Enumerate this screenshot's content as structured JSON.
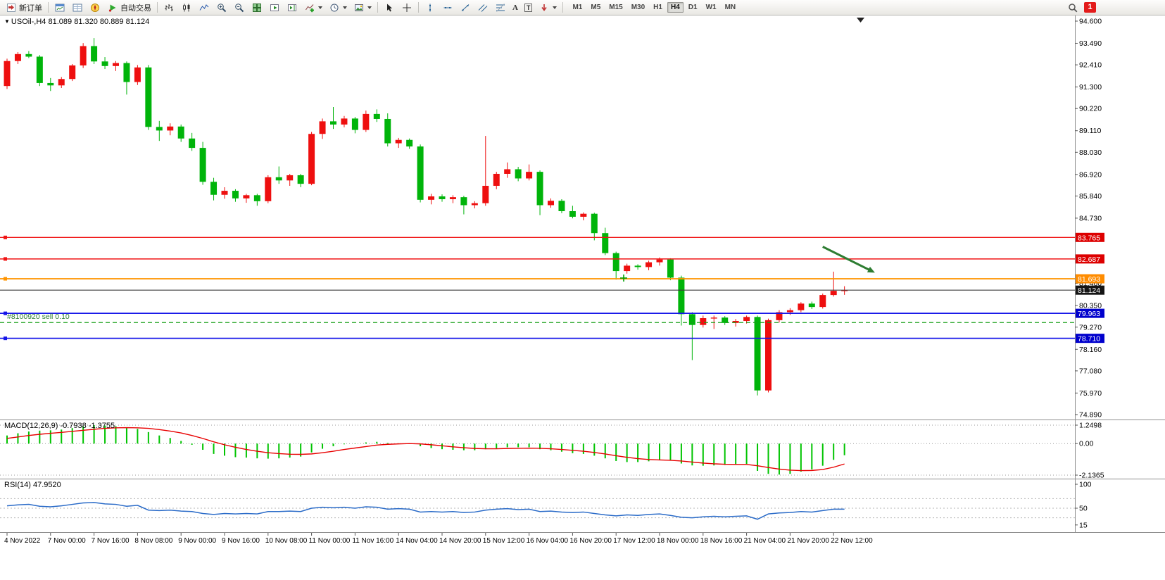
{
  "toolbar": {
    "new_order": "新订单",
    "auto_trading": "自动交易",
    "text_tool": "A",
    "text_label_tool": "T",
    "timeframes": [
      "M1",
      "M5",
      "M15",
      "M30",
      "H1",
      "H4",
      "D1",
      "W1",
      "MN"
    ],
    "active_timeframe": "H4",
    "notification_count": "1"
  },
  "chart": {
    "symbol": "USOil-,H4",
    "ohlc_values": "81.089 81.320 80.889 81.124",
    "macd_label": "MACD(12,26,9) -0.7938 -1.3755",
    "rsi_label": "RSI(14) 47.9520",
    "position_label": "#8100920 sell 0.10"
  },
  "chart_data": [
    {
      "type": "candlestick",
      "title": "USOil-,H4",
      "timeframe": "H4",
      "ohlc_display": {
        "open": "81.089",
        "high": "81.320",
        "low": "80.889",
        "close": "81.124"
      },
      "ylim": [
        74.89,
        94.6
      ],
      "up_color": "#ee0f0f",
      "down_color": "#00b40a",
      "candles_per_label": 4,
      "x_labels": [
        "4 Nov 2022",
        "7 Nov 00:00",
        "7 Nov 16:00",
        "8 Nov 08:00",
        "9 Nov 00:00",
        "9 Nov 16:00",
        "10 Nov 08:00",
        "11 Nov 00:00",
        "11 Nov 16:00",
        "14 Nov 04:00",
        "14 Nov 20:00",
        "15 Nov 12:00",
        "16 Nov 04:00",
        "16 Nov 20:00",
        "17 Nov 12:00",
        "18 Nov 00:00",
        "18 Nov 16:00",
        "21 Nov 04:00",
        "21 Nov 20:00",
        "22 Nov 12:00"
      ],
      "y_axis_labels": [
        "94.600",
        "93.490",
        "92.410",
        "91.300",
        "90.220",
        "89.110",
        "88.030",
        "86.920",
        "85.840",
        "84.730",
        "81.460",
        "80.350",
        "79.270",
        "78.160",
        "77.080",
        "75.970",
        "74.890"
      ],
      "candles": [
        [
          91.35,
          92.72,
          91.2,
          92.6
        ],
        [
          92.6,
          93.05,
          92.45,
          92.95
        ],
        [
          92.95,
          93.1,
          92.75,
          92.82
        ],
        [
          92.82,
          92.9,
          91.35,
          91.5
        ],
        [
          91.5,
          91.75,
          91.1,
          91.38
        ],
        [
          91.38,
          91.8,
          91.25,
          91.7
        ],
        [
          91.7,
          92.45,
          91.6,
          92.38
        ],
        [
          92.38,
          93.5,
          92.25,
          93.35
        ],
        [
          93.35,
          93.75,
          92.45,
          92.58
        ],
        [
          92.58,
          92.8,
          92.2,
          92.35
        ],
        [
          92.35,
          92.6,
          92.1,
          92.5
        ],
        [
          92.5,
          92.58,
          90.92,
          91.55
        ],
        [
          91.55,
          92.4,
          91.4,
          92.28
        ],
        [
          92.28,
          92.4,
          89.15,
          89.3
        ],
        [
          89.3,
          89.6,
          88.6,
          89.12
        ],
        [
          89.12,
          89.48,
          88.88,
          89.32
        ],
        [
          89.32,
          89.42,
          88.55,
          88.72
        ],
        [
          88.72,
          89.0,
          88.1,
          88.25
        ],
        [
          88.25,
          88.55,
          86.4,
          86.55
        ],
        [
          86.55,
          86.75,
          85.62,
          85.9
        ],
        [
          85.9,
          86.28,
          85.7,
          86.1
        ],
        [
          86.1,
          86.18,
          85.55,
          85.72
        ],
        [
          85.72,
          85.95,
          85.5,
          85.88
        ],
        [
          85.88,
          85.95,
          85.35,
          85.58
        ],
        [
          85.58,
          86.88,
          85.48,
          86.78
        ],
        [
          86.78,
          87.32,
          86.45,
          86.62
        ],
        [
          86.62,
          86.95,
          86.35,
          86.88
        ],
        [
          86.88,
          86.95,
          86.28,
          86.45
        ],
        [
          86.45,
          89.05,
          86.38,
          88.95
        ],
        [
          88.95,
          89.72,
          88.7,
          89.58
        ],
        [
          89.58,
          90.3,
          89.2,
          89.42
        ],
        [
          89.42,
          89.85,
          89.28,
          89.72
        ],
        [
          89.72,
          89.8,
          88.98,
          89.15
        ],
        [
          89.15,
          90.12,
          89.05,
          89.95
        ],
        [
          89.95,
          90.18,
          89.55,
          89.7
        ],
        [
          89.7,
          89.98,
          88.32,
          88.48
        ],
        [
          88.48,
          88.75,
          88.25,
          88.65
        ],
        [
          88.65,
          88.72,
          88.2,
          88.32
        ],
        [
          88.32,
          88.42,
          85.52,
          85.65
        ],
        [
          85.65,
          85.95,
          85.42,
          85.82
        ],
        [
          85.82,
          85.92,
          85.55,
          85.68
        ],
        [
          85.68,
          85.88,
          85.48,
          85.78
        ],
        [
          85.78,
          85.85,
          84.92,
          85.38
        ],
        [
          85.38,
          85.58,
          85.22,
          85.48
        ],
        [
          85.48,
          88.85,
          85.35,
          86.35
        ],
        [
          86.35,
          87.05,
          86.18,
          86.95
        ],
        [
          86.95,
          87.52,
          86.75,
          87.18
        ],
        [
          87.18,
          87.3,
          86.58,
          86.72
        ],
        [
          86.72,
          87.42,
          86.62,
          87.05
        ],
        [
          87.05,
          87.12,
          84.88,
          85.38
        ],
        [
          85.38,
          85.72,
          85.25,
          85.6
        ],
        [
          85.6,
          85.68,
          84.98,
          85.08
        ],
        [
          85.08,
          85.35,
          84.72,
          84.8
        ],
        [
          84.8,
          85.02,
          84.62,
          84.95
        ],
        [
          84.95,
          85.0,
          83.62,
          83.98
        ],
        [
          83.98,
          84.25,
          82.88,
          82.98
        ],
        [
          82.98,
          83.05,
          81.65,
          82.08
        ],
        [
          82.08,
          82.45,
          81.95,
          82.35
        ],
        [
          82.35,
          82.42,
          82.15,
          82.28
        ],
        [
          82.28,
          82.6,
          82.12,
          82.52
        ],
        [
          82.52,
          82.76,
          82.35,
          82.66
        ],
        [
          82.66,
          82.72,
          81.62,
          81.75
        ],
        [
          81.75,
          81.85,
          79.35,
          79.92
        ],
        [
          79.92,
          80.02,
          77.62,
          79.38
        ],
        [
          79.38,
          79.85,
          79.25,
          79.72
        ],
        [
          79.72,
          79.85,
          79.18,
          79.75
        ],
        [
          79.75,
          79.82,
          79.38,
          79.48
        ],
        [
          79.48,
          79.68,
          79.3,
          79.58
        ],
        [
          79.58,
          79.85,
          79.45,
          79.78
        ],
        [
          79.78,
          79.85,
          75.85,
          76.1
        ],
        [
          76.1,
          79.7,
          76.0,
          79.62
        ],
        [
          79.62,
          80.12,
          79.5,
          80.02
        ],
        [
          80.02,
          80.22,
          79.88,
          80.12
        ],
        [
          80.12,
          80.52,
          80.02,
          80.45
        ],
        [
          80.45,
          80.55,
          80.18,
          80.28
        ],
        [
          80.28,
          80.95,
          80.2,
          80.88
        ],
        [
          80.88,
          82.05,
          80.8,
          81.09
        ],
        [
          81.089,
          81.32,
          80.889,
          81.124
        ]
      ],
      "price_lines": [
        {
          "name": "resistance-line-upper",
          "price": 83.765,
          "color": "#f01414",
          "style": "solid",
          "width": 1.4,
          "handle": true,
          "badge": "83.765",
          "badge_bg": "#dd0000"
        },
        {
          "name": "resistance-line-lower",
          "price": 82.687,
          "color": "#f01414",
          "style": "solid",
          "width": 1.4,
          "handle": true,
          "badge": "82.687",
          "badge_bg": "#dd0000"
        },
        {
          "name": "orange-level-line",
          "price": 81.693,
          "color": "#ff9400",
          "style": "solid",
          "width": 1.8,
          "handle": true,
          "badge": "81.693",
          "badge_bg": "#ff8c00"
        },
        {
          "name": "current-price-line",
          "price": 81.124,
          "color": "#3a3a3a",
          "style": "solid",
          "width": 1.2,
          "handle": false,
          "badge": "81.124",
          "badge_bg": "#151515"
        },
        {
          "name": "blue-support-line-upper",
          "price": 79.963,
          "color": "#1515e8",
          "style": "solid",
          "width": 1.8,
          "handle": true,
          "badge": "79.963",
          "badge_bg": "#0000cd"
        },
        {
          "name": "blue-support-line-lower",
          "price": 78.71,
          "color": "#1515e8",
          "style": "solid",
          "width": 1.8,
          "handle": true,
          "badge": "78.710",
          "bad_bg": null,
          "badge_bg": "#0000cd"
        },
        {
          "name": "open-position-line",
          "price": 79.5,
          "color": "#18a018",
          "style": "dashed",
          "width": 1.2,
          "handle": false,
          "badge": null,
          "badge_bg": null
        }
      ],
      "annotations": [
        {
          "type": "arrow",
          "color": "#2e7d32",
          "from": {
            "index": 75.0,
            "price": 83.3
          },
          "to": {
            "index": 79.8,
            "price": 82.0
          }
        },
        {
          "type": "cross",
          "color": "#00a000",
          "index": 56.7,
          "price": 81.73
        }
      ]
    },
    {
      "type": "macd",
      "label": "MACD(12,26,9) -0.7938 -1.3755",
      "histogram_color": "#00c400",
      "signal_color": "#e80000",
      "scale_labels": [
        "1.2498",
        "0.00",
        "-2.1365"
      ],
      "values": [
        0.55,
        0.7,
        0.82,
        0.88,
        0.9,
        0.95,
        1.05,
        1.18,
        1.25,
        1.22,
        1.18,
        1.05,
        1.0,
        0.78,
        0.55,
        0.38,
        0.18,
        -0.08,
        -0.42,
        -0.7,
        -0.82,
        -0.92,
        -0.95,
        -1.0,
        -1.02,
        -1.0,
        -0.95,
        -0.88,
        -0.6,
        -0.35,
        -0.18,
        -0.05,
        -0.02,
        0.08,
        0.12,
        0.05,
        0.02,
        -0.02,
        -0.18,
        -0.3,
        -0.38,
        -0.42,
        -0.45,
        -0.45,
        -0.38,
        -0.32,
        -0.25,
        -0.25,
        -0.25,
        -0.38,
        -0.45,
        -0.55,
        -0.65,
        -0.7,
        -0.82,
        -1.0,
        -1.18,
        -1.25,
        -1.25,
        -1.2,
        -1.12,
        -1.15,
        -1.35,
        -1.48,
        -1.5,
        -1.48,
        -1.45,
        -1.42,
        -1.38,
        -1.85,
        -2.05,
        -2.1,
        -2.05,
        -1.9,
        -1.75,
        -1.5,
        -1.1,
        -0.79
      ],
      "signal": [
        0.35,
        0.45,
        0.55,
        0.63,
        0.7,
        0.76,
        0.83,
        0.9,
        0.97,
        1.03,
        1.07,
        1.08,
        1.07,
        1.03,
        0.95,
        0.85,
        0.72,
        0.55,
        0.35,
        0.12,
        -0.08,
        -0.25,
        -0.4,
        -0.52,
        -0.62,
        -0.68,
        -0.72,
        -0.73,
        -0.7,
        -0.62,
        -0.52,
        -0.4,
        -0.3,
        -0.2,
        -0.1,
        -0.05,
        -0.02,
        0.0,
        -0.02,
        -0.08,
        -0.15,
        -0.22,
        -0.28,
        -0.33,
        -0.35,
        -0.35,
        -0.33,
        -0.32,
        -0.31,
        -0.32,
        -0.35,
        -0.4,
        -0.46,
        -0.52,
        -0.6,
        -0.7,
        -0.82,
        -0.93,
        -1.02,
        -1.08,
        -1.11,
        -1.13,
        -1.18,
        -1.25,
        -1.32,
        -1.37,
        -1.4,
        -1.41,
        -1.41,
        -1.5,
        -1.62,
        -1.73,
        -1.8,
        -1.83,
        -1.82,
        -1.76,
        -1.6,
        -1.38
      ]
    },
    {
      "type": "rsi",
      "label": "RSI(14) 47.9520",
      "line_color": "#2a6bc8",
      "scale_labels": [
        "100",
        "50",
        "15"
      ],
      "levels": [
        70,
        50,
        30
      ],
      "values": [
        55,
        57,
        58,
        54,
        53,
        55,
        58,
        61,
        62,
        59,
        58,
        54,
        56,
        46,
        45,
        46,
        44,
        43,
        39,
        37,
        39,
        38,
        39,
        38,
        43,
        43,
        44,
        43,
        50,
        52,
        51,
        52,
        50,
        53,
        52,
        48,
        49,
        48,
        42,
        43,
        42,
        43,
        41,
        42,
        46,
        48,
        49,
        47,
        48,
        43,
        44,
        42,
        41,
        42,
        39,
        36,
        34,
        36,
        35,
        37,
        38,
        35,
        31,
        30,
        32,
        33,
        32,
        33,
        34,
        27,
        38,
        40,
        41,
        43,
        42,
        45,
        48,
        47.95
      ]
    }
  ]
}
